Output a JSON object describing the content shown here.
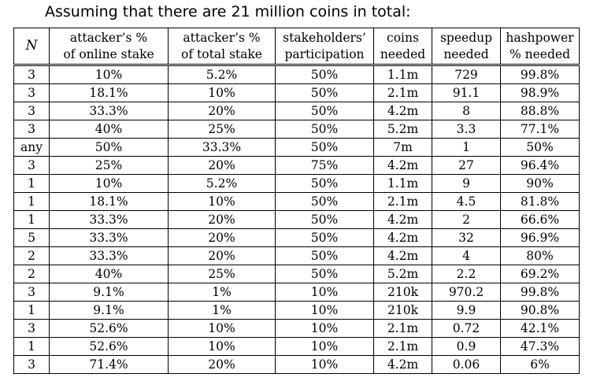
{
  "title": "Assuming that there are 21 million coins in total:",
  "table": {
    "headers": [
      {
        "line1": "N",
        "line2": ""
      },
      {
        "line1": "attacker’s %",
        "line2": "of online stake"
      },
      {
        "line1": "attacker’s %",
        "line2": "of total stake"
      },
      {
        "line1": "stakeholders’",
        "line2": "participation"
      },
      {
        "line1": "coins",
        "line2": "needed"
      },
      {
        "line1": "speedup",
        "line2": "needed"
      },
      {
        "line1": "hashpower",
        "line2": "% needed"
      }
    ],
    "rows": [
      [
        "3",
        "10%",
        "5.2%",
        "50%",
        "1.1m",
        "729",
        "99.8%"
      ],
      [
        "3",
        "18.1%",
        "10%",
        "50%",
        "2.1m",
        "91.1",
        "98.9%"
      ],
      [
        "3",
        "33.3%",
        "20%",
        "50%",
        "4.2m",
        "8",
        "88.8%"
      ],
      [
        "3",
        "40%",
        "25%",
        "50%",
        "5.2m",
        "3.3",
        "77.1%"
      ],
      [
        "any",
        "50%",
        "33.3%",
        "50%",
        "7m",
        "1",
        "50%"
      ],
      [
        "3",
        "25%",
        "20%",
        "75%",
        "4.2m",
        "27",
        "96.4%"
      ],
      [
        "1",
        "10%",
        "5.2%",
        "50%",
        "1.1m",
        "9",
        "90%"
      ],
      [
        "1",
        "18.1%",
        "10%",
        "50%",
        "2.1m",
        "4.5",
        "81.8%"
      ],
      [
        "1",
        "33.3%",
        "20%",
        "50%",
        "4.2m",
        "2",
        "66.6%"
      ],
      [
        "5",
        "33.3%",
        "20%",
        "50%",
        "4.2m",
        "32",
        "96.9%"
      ],
      [
        "2",
        "33.3%",
        "20%",
        "50%",
        "4.2m",
        "4",
        "80%"
      ],
      [
        "2",
        "40%",
        "25%",
        "50%",
        "5.2m",
        "2.2",
        "69.2%"
      ],
      [
        "3",
        "9.1%",
        "1%",
        "10%",
        "210k",
        "970.2",
        "99.8%"
      ],
      [
        "1",
        "9.1%",
        "1%",
        "10%",
        "210k",
        "9.9",
        "90.8%"
      ],
      [
        "3",
        "52.6%",
        "10%",
        "10%",
        "2.1m",
        "0.72",
        "42.1%"
      ],
      [
        "1",
        "52.6%",
        "10%",
        "10%",
        "2.1m",
        "0.9",
        "47.3%"
      ],
      [
        "3",
        "71.4%",
        "20%",
        "10%",
        "4.2m",
        "0.06",
        "6%"
      ]
    ]
  }
}
